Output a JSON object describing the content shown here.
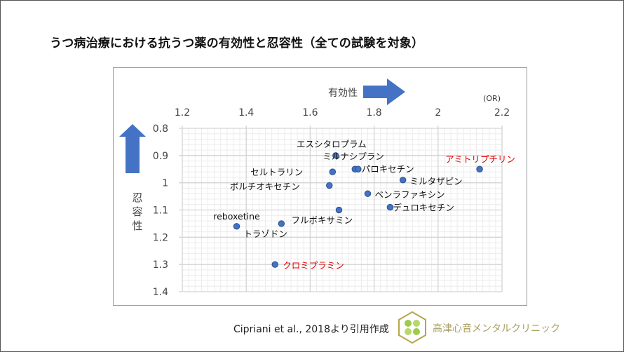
{
  "title": "うつ病治療における抗うつ薬の有効性と忍容性（全ての試験を対象）",
  "chart_data": {
    "type": "scatter",
    "xlabel": "有効性",
    "ylabel": "忍容性",
    "x_unit": "(OR)",
    "xlim": [
      1.2,
      2.2
    ],
    "ylim": [
      0.8,
      1.4
    ],
    "y_inverted": true,
    "x_axis_position": "top",
    "x_ticks": [
      "1.2",
      "1.4",
      "1.6",
      "1.8",
      "2",
      "2.2"
    ],
    "y_ticks": [
      "0.8",
      "0.9",
      "1",
      "1.1",
      "1.2",
      "1.3",
      "1.4"
    ],
    "grid": true,
    "marker_color": "#4472c4",
    "highlight_color": "#e00000",
    "arrow_color": "#4472c4",
    "points": [
      {
        "label": "エスシタロプラム",
        "x": 1.68,
        "y": 0.9,
        "highlight": false
      },
      {
        "label": "ミルナシプラン",
        "x": 1.74,
        "y": 0.95,
        "highlight": false
      },
      {
        "label": "パロキセチン",
        "x": 1.75,
        "y": 0.95,
        "highlight": false
      },
      {
        "label": "セルトラリン",
        "x": 1.67,
        "y": 0.96,
        "highlight": false
      },
      {
        "label": "ボルチオキセチン",
        "x": 1.66,
        "y": 1.01,
        "highlight": false
      },
      {
        "label": "ミルタザピン",
        "x": 1.89,
        "y": 0.99,
        "highlight": false
      },
      {
        "label": "ベンラファキシン",
        "x": 1.78,
        "y": 1.04,
        "highlight": false
      },
      {
        "label": "デュロキセチン",
        "x": 1.85,
        "y": 1.09,
        "highlight": false
      },
      {
        "label": "フルボキサミン",
        "x": 1.69,
        "y": 1.1,
        "highlight": false
      },
      {
        "label": "reboxetine",
        "x": 1.37,
        "y": 1.16,
        "highlight": false
      },
      {
        "label": "トラゾドン",
        "x": 1.51,
        "y": 1.15,
        "highlight": false
      },
      {
        "label": "クロミプラミン",
        "x": 1.49,
        "y": 1.3,
        "highlight": true
      },
      {
        "label": "アミトリプチリン",
        "x": 2.13,
        "y": 0.95,
        "highlight": true
      }
    ]
  },
  "footer": {
    "source": "Cipriani et al., 2018より引用作成",
    "clinic": "高津心音メンタルクリニック"
  }
}
